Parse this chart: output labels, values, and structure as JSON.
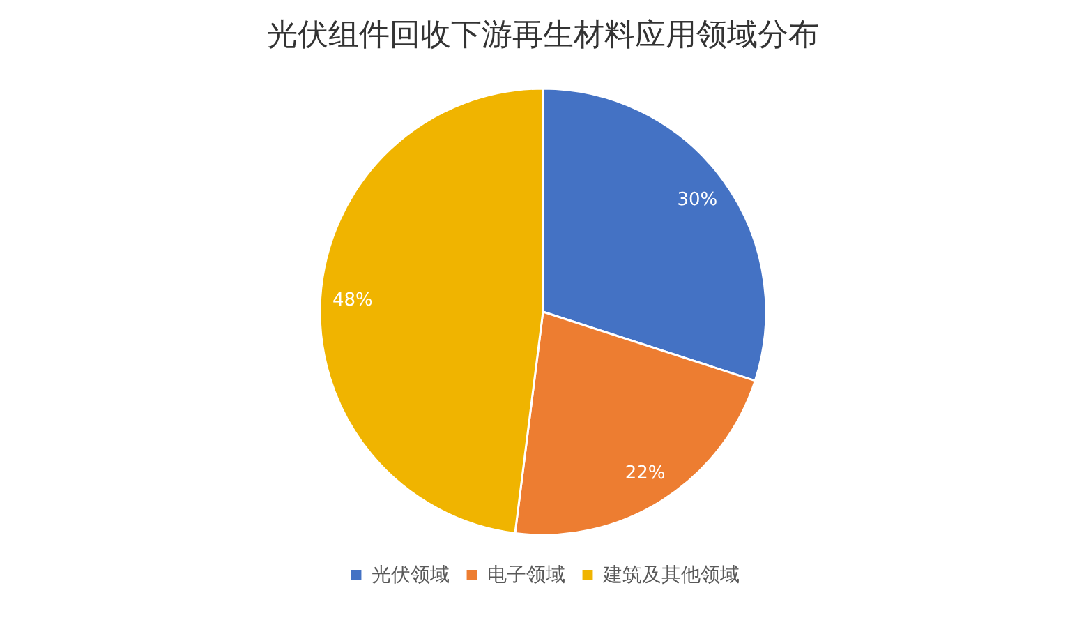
{
  "chart_data": {
    "type": "pie",
    "title": "光伏组件回收下游再生材料应用领域分布",
    "categories": [
      "光伏领域",
      "电子领域",
      "建筑及其他领域"
    ],
    "values": [
      30,
      22,
      48
    ],
    "colors": [
      "#4472c4",
      "#ed7d31",
      "#f0b400"
    ],
    "value_labels": [
      "30%",
      "22%",
      "48%"
    ],
    "legend": "bottom"
  }
}
